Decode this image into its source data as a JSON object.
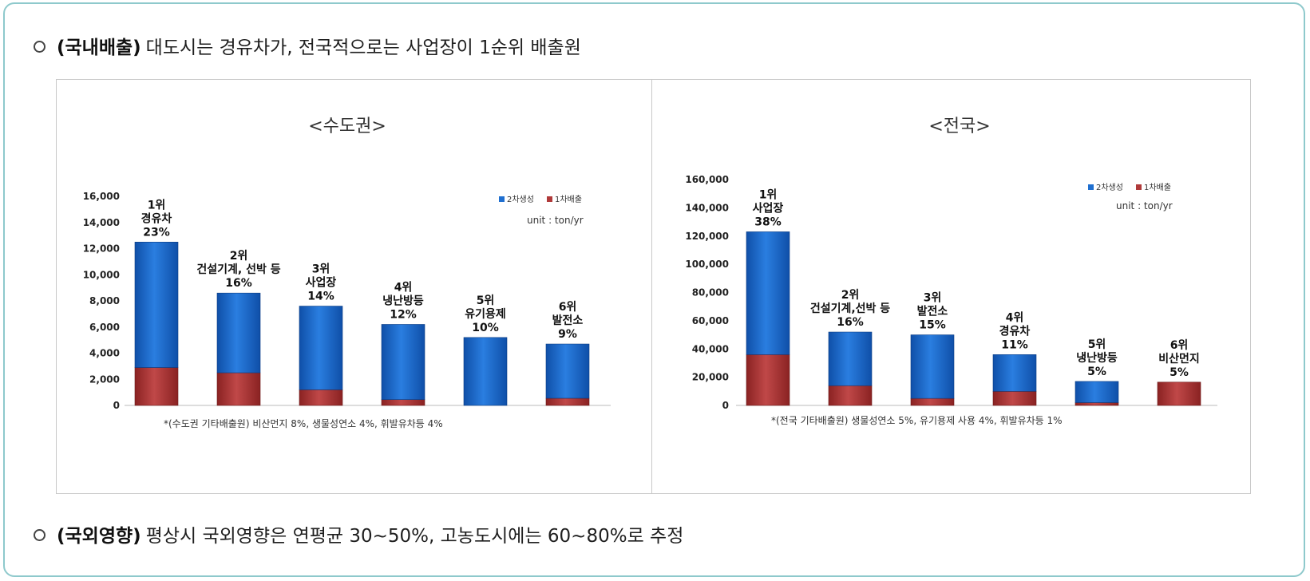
{
  "top_bullet": {
    "bold": "(국내배출)",
    "text": "대도시는 경유차가, 전국적으로는 사업장이 1순위 배출원"
  },
  "bottom_bullet": {
    "bold": "(국외영향)",
    "text": "평상시 국외영향은 연평균 30~50%, 고농도시에는 60~80%로 추정"
  },
  "colors": {
    "series_2": "#1f6fd0",
    "series_1": "#b03a3a",
    "frame": "#8ec9cc"
  },
  "chart_data": [
    {
      "type": "bar",
      "stacked": true,
      "title": "<수도권>",
      "unit_label": "unit : ton/yr",
      "legend_position": "top-right",
      "ylim": [
        0,
        16000
      ],
      "y_ticks": [
        "0",
        "2,000",
        "4,000",
        "6,000",
        "8,000",
        "10,000",
        "12,000",
        "14,000",
        "16,000"
      ],
      "y_tick_values": [
        0,
        2000,
        4000,
        6000,
        8000,
        10000,
        12000,
        14000,
        16000
      ],
      "series": [
        {
          "name": "1차배출",
          "color": "#b03a3a",
          "values": [
            2900,
            2500,
            1200,
            450,
            0,
            550
          ]
        },
        {
          "name": "2차생성",
          "color": "#1f6fd0",
          "values": [
            9600,
            6100,
            6400,
            5750,
            5200,
            4150
          ]
        }
      ],
      "bar_labels": [
        [
          "1위",
          "경유차",
          "23%"
        ],
        [
          "2위",
          "건설기계, 선박 등",
          "16%"
        ],
        [
          "3위",
          "사업장",
          "14%"
        ],
        [
          "4위",
          "냉난방등",
          "12%"
        ],
        [
          "5위",
          "유기용제",
          "10%"
        ],
        [
          "6위",
          "발전소",
          "9%"
        ]
      ],
      "footnote": "*(수도권 기타배출원) 비산먼지 8%, 생물성연소 4%, 휘발유차등 4%"
    },
    {
      "type": "bar",
      "stacked": true,
      "title": "<전국>",
      "unit_label": "unit : ton/yr",
      "legend_position": "top-right",
      "ylim": [
        0,
        160000
      ],
      "y_ticks": [
        "0",
        "20,000",
        "40,000",
        "60,000",
        "80,000",
        "100,000",
        "120,000",
        "140,000",
        "160,000"
      ],
      "y_tick_values": [
        0,
        20000,
        40000,
        60000,
        80000,
        100000,
        120000,
        140000,
        160000
      ],
      "series": [
        {
          "name": "1차배출",
          "color": "#b03a3a",
          "values": [
            36000,
            14000,
            5000,
            10000,
            2000,
            16500
          ]
        },
        {
          "name": "2차생성",
          "color": "#1f6fd0",
          "values": [
            87000,
            38000,
            45000,
            26000,
            15000,
            0
          ]
        }
      ],
      "bar_labels": [
        [
          "1위",
          "사업장",
          "38%"
        ],
        [
          "2위",
          "건설기계,선박 등",
          "16%"
        ],
        [
          "3위",
          "발전소",
          "15%"
        ],
        [
          "4위",
          "경유차",
          "11%"
        ],
        [
          "5위",
          "냉난방등",
          "5%"
        ],
        [
          "6위",
          "비산먼지",
          "5%"
        ]
      ],
      "footnote": "*(전국 기타배출원) 생물성연소 5%, 유기용제 사용 4%, 휘발유차등 1%"
    }
  ]
}
